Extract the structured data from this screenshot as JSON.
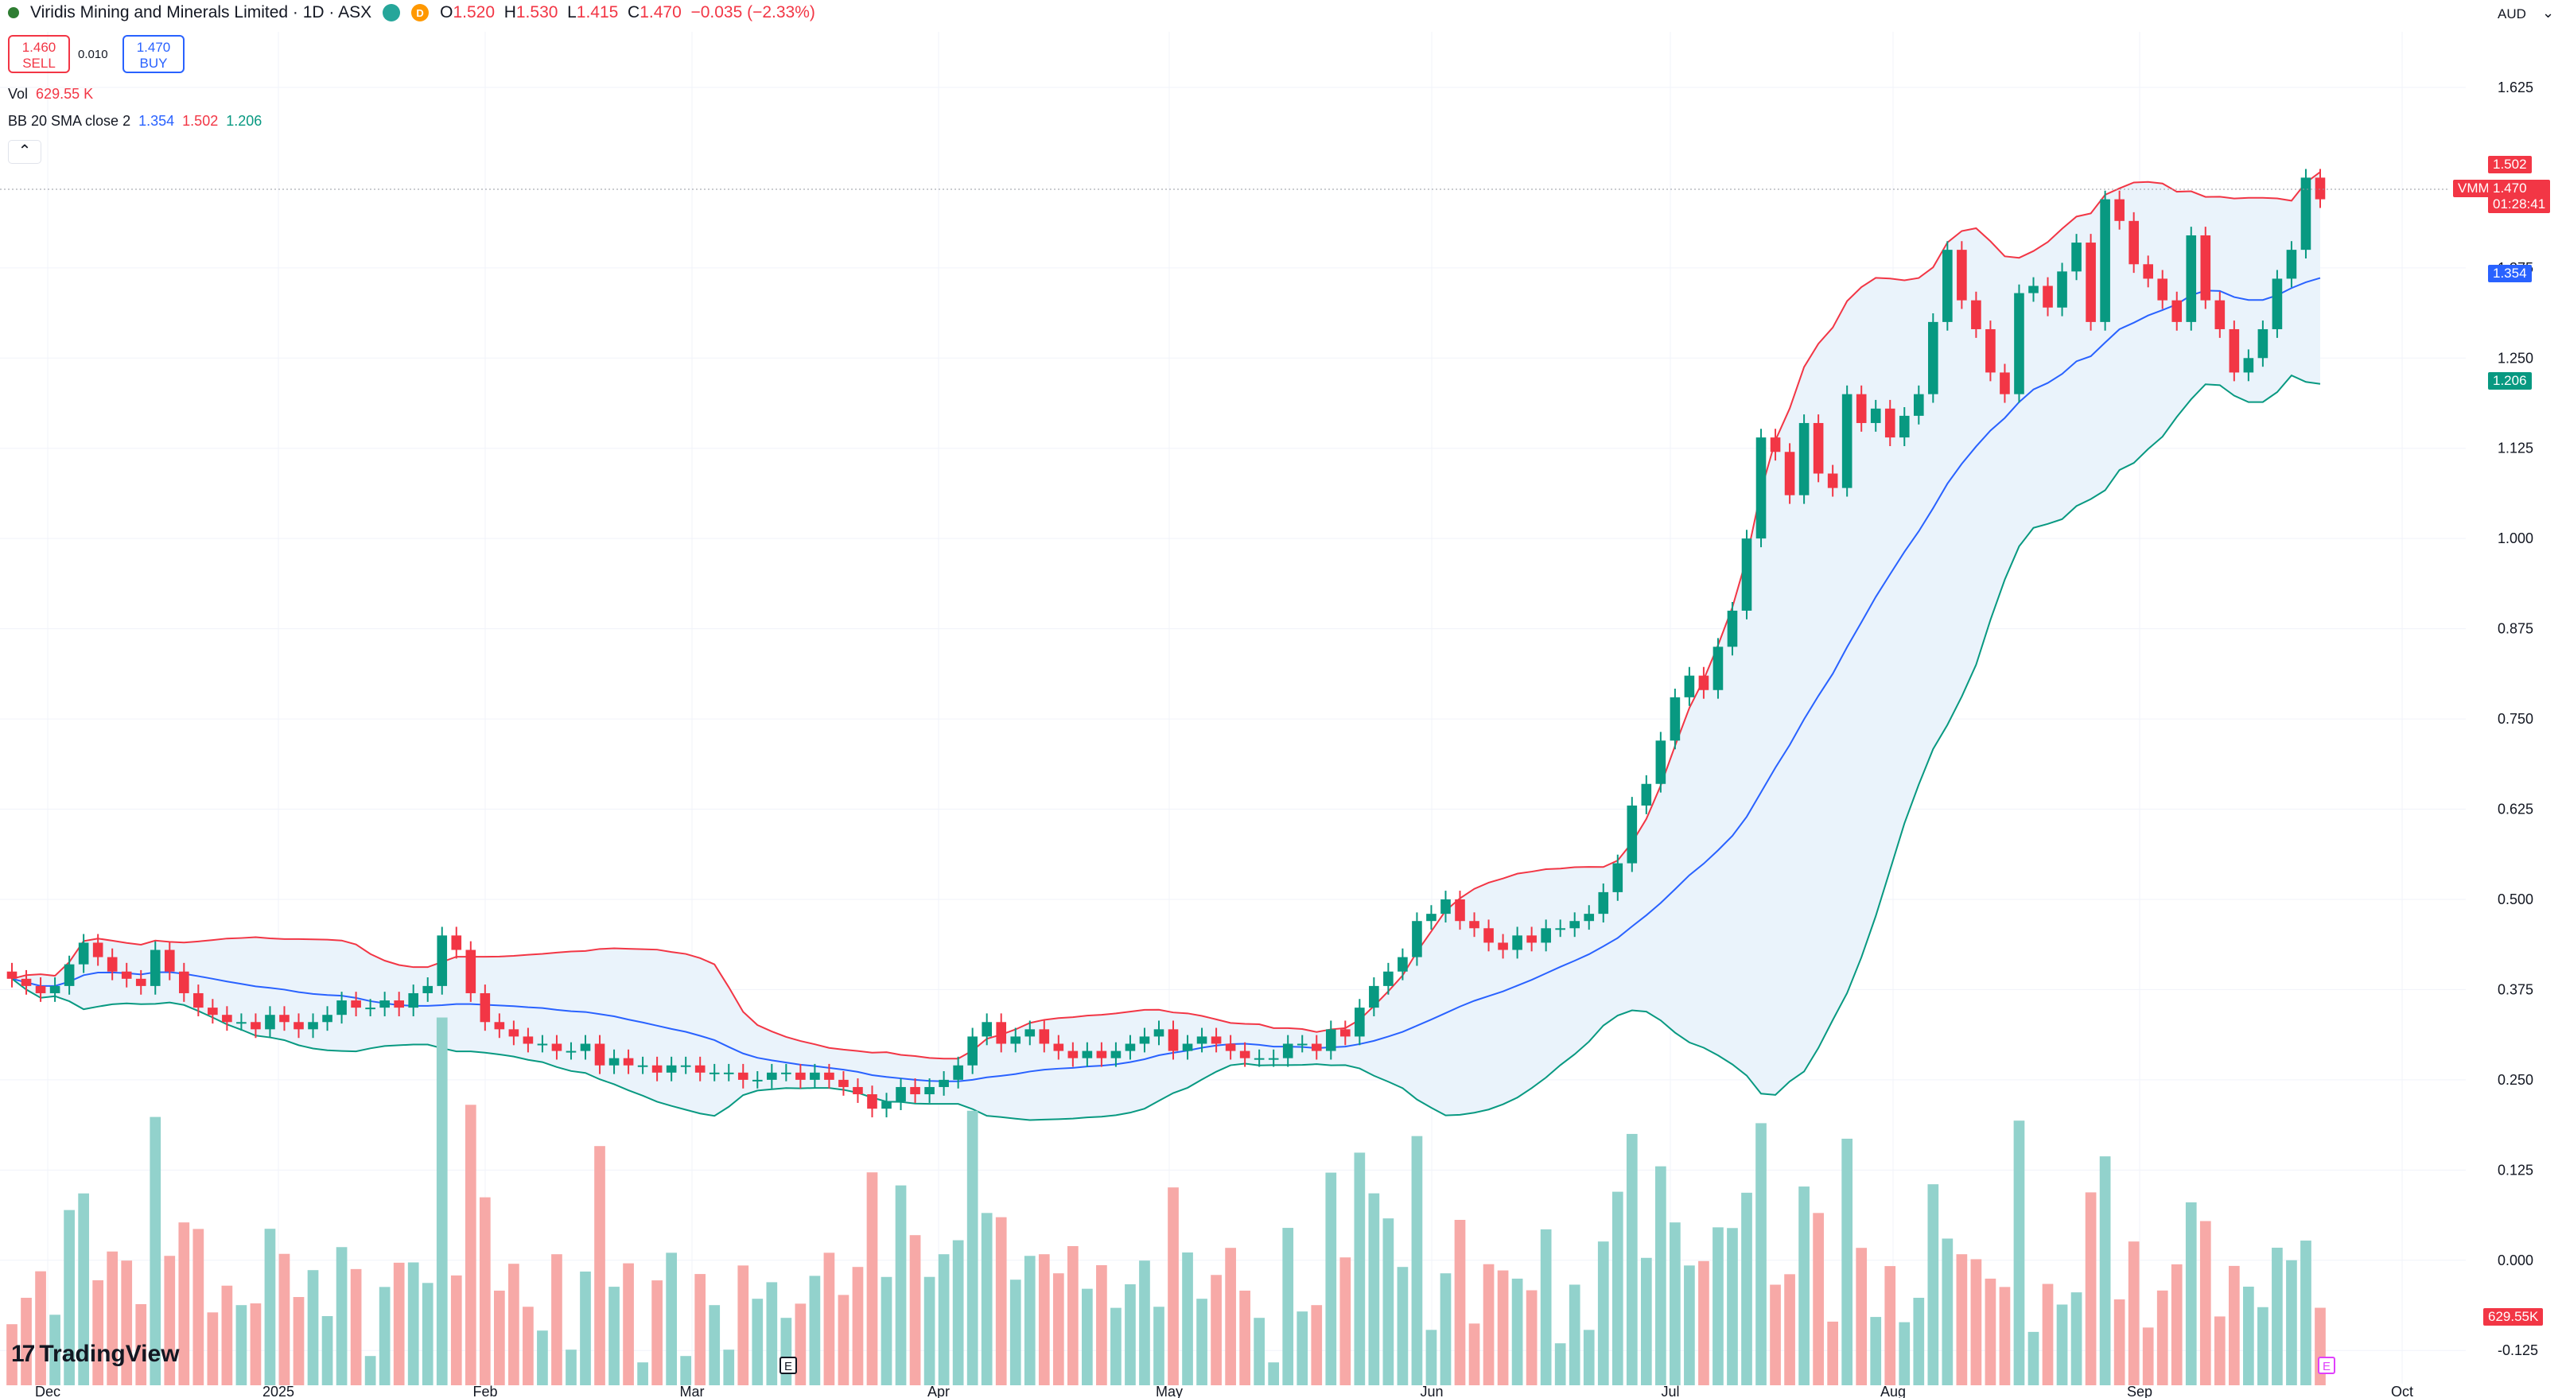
{
  "header": {
    "symbol_name": "Viridis Mining and Minerals Limited · 1D · ASX",
    "badge_letter": "D",
    "ohlc": {
      "o_label": "O",
      "o": "1.520",
      "h_label": "H",
      "h": "1.530",
      "l_label": "L",
      "l": "1.415",
      "c_label": "C",
      "c": "1.470",
      "change": "−0.035 (−2.33%)"
    }
  },
  "trade": {
    "sell_price": "1.460",
    "sell_label": "SELL",
    "spread": "0.010",
    "buy_price": "1.470",
    "buy_label": "BUY"
  },
  "legends": {
    "vol_label": "Vol",
    "vol_value": "629.55 K",
    "bb_label": "BB 20 SMA close 2",
    "bb_mid": "1.354",
    "bb_upper": "1.502",
    "bb_lower": "1.206"
  },
  "currency": "AUD",
  "price_tags": {
    "upper": "1.502",
    "last_symbol": "VMM",
    "last": "1.470",
    "countdown": "01:28:41",
    "mid": "1.354",
    "lower": "1.206",
    "volume": "629.55K"
  },
  "branding": "TradingView",
  "earnings_marker": "E",
  "colors": {
    "up": "#089981",
    "down": "#f23645",
    "vol_up": "#92d2cc",
    "vol_down": "#f7a9a7",
    "bb_upper": "#f23645",
    "bb_mid": "#2962ff",
    "bb_lower": "#089981",
    "bb_fill": "#eaf3fb"
  },
  "chart_data": {
    "type": "candlestick",
    "y_axis": {
      "ticks": [
        "1.625",
        "1.375",
        "1.250",
        "1.125",
        "1.000",
        "0.875",
        "0.750",
        "0.625",
        "0.500",
        "0.375",
        "0.250",
        "0.125",
        "0.000",
        "-0.125"
      ],
      "range": [
        -0.16,
        1.68
      ]
    },
    "x_axis_labels": [
      "Dec",
      "2025",
      "Feb",
      "Mar",
      "Apr",
      "May",
      "Jun",
      "Jul",
      "Aug",
      "Sep",
      "Oct"
    ],
    "close": [
      0.39,
      0.38,
      0.37,
      0.38,
      0.41,
      0.44,
      0.42,
      0.4,
      0.39,
      0.38,
      0.43,
      0.4,
      0.37,
      0.35,
      0.34,
      0.33,
      0.33,
      0.32,
      0.34,
      0.33,
      0.32,
      0.33,
      0.34,
      0.36,
      0.35,
      0.35,
      0.36,
      0.35,
      0.37,
      0.38,
      0.45,
      0.43,
      0.37,
      0.33,
      0.32,
      0.31,
      0.3,
      0.3,
      0.29,
      0.29,
      0.3,
      0.27,
      0.28,
      0.27,
      0.27,
      0.26,
      0.27,
      0.27,
      0.26,
      0.26,
      0.26,
      0.25,
      0.25,
      0.26,
      0.26,
      0.25,
      0.26,
      0.25,
      0.24,
      0.23,
      0.21,
      0.22,
      0.24,
      0.23,
      0.24,
      0.25,
      0.27,
      0.31,
      0.33,
      0.3,
      0.31,
      0.32,
      0.3,
      0.29,
      0.28,
      0.29,
      0.28,
      0.29,
      0.3,
      0.31,
      0.32,
      0.29,
      0.3,
      0.31,
      0.3,
      0.29,
      0.28,
      0.28,
      0.28,
      0.3,
      0.3,
      0.29,
      0.32,
      0.31,
      0.35,
      0.38,
      0.4,
      0.42,
      0.47,
      0.48,
      0.5,
      0.47,
      0.46,
      0.44,
      0.43,
      0.45,
      0.44,
      0.46,
      0.46,
      0.47,
      0.48,
      0.51,
      0.55,
      0.63,
      0.66,
      0.72,
      0.78,
      0.81,
      0.79,
      0.85,
      0.9,
      1.0,
      1.14,
      1.12,
      1.06,
      1.16,
      1.09,
      1.07,
      1.2,
      1.16,
      1.18,
      1.14,
      1.17,
      1.2,
      1.3,
      1.4,
      1.33,
      1.29,
      1.23,
      1.2,
      1.34,
      1.35,
      1.32,
      1.37,
      1.41,
      1.3,
      1.47,
      1.44,
      1.38,
      1.36,
      1.33,
      1.3,
      1.42,
      1.33,
      1.29,
      1.23,
      1.25,
      1.29,
      1.36,
      1.4,
      1.5,
      1.47
    ],
    "bb_upper_last": 1.502,
    "bb_mid_last": 1.354,
    "bb_lower_last": 1.206,
    "volume_last_k": 629.55,
    "volume_axis_max_k": 3100,
    "grid": true,
    "legend_placement": "top-left"
  }
}
